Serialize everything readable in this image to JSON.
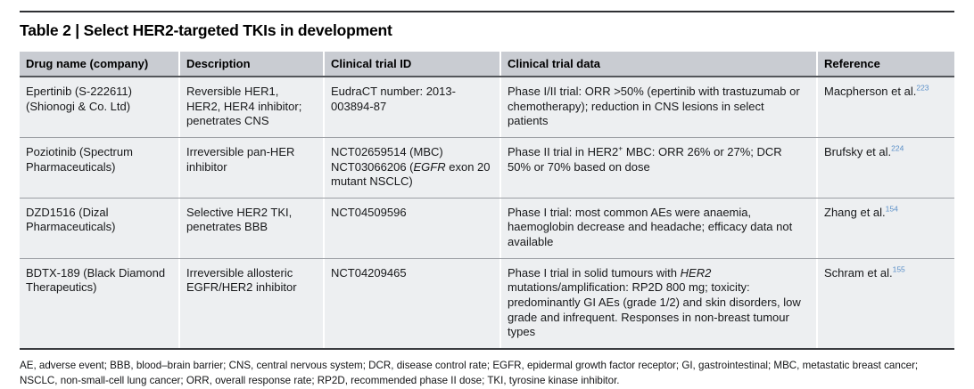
{
  "title": "Table 2 | Select HER2-targeted TKIs in development",
  "colors": {
    "header_bg": "#c9ccd2",
    "row_bg": "#edeff1",
    "reference_link_blue": "#5a8fc8",
    "rule_dark": "#2e3033"
  },
  "table": {
    "columns": [
      {
        "key": "drug",
        "label": "Drug name (company)"
      },
      {
        "key": "description",
        "label": "Description"
      },
      {
        "key": "trial_id",
        "label": "Clinical trial ID"
      },
      {
        "key": "trial_data",
        "label": "Clinical trial data"
      },
      {
        "key": "reference",
        "label": "Reference"
      }
    ],
    "rows": [
      {
        "drug": "Epertinib (S-222611) (Shionogi & Co. Ltd)",
        "description": "Reversible HER1, HER2, HER4 inhibitor; penetrates CNS",
        "trial_id": "EudraCT number: 2013-003894-87",
        "trial_data": "Phase I/II trial: ORR >50% (epertinib with trastuzumab or chemotherapy); reduction in CNS lesions in select patients",
        "reference": [
          {
            "t": "Macpherson et al."
          },
          {
            "t": "223",
            "sup": true,
            "ref": true
          }
        ]
      },
      {
        "drug": "Poziotinib (Spectrum Pharmaceuticals)",
        "description": "Irreversible pan-HER inhibitor",
        "trial_id": [
          {
            "t": "NCT02659514 (MBC)"
          },
          {
            "br": true
          },
          {
            "t": "NCT03066206 ("
          },
          {
            "t": "EGFR",
            "i": true
          },
          {
            "t": " exon 20 mutant NSCLC)"
          }
        ],
        "trial_data": [
          {
            "t": "Phase II trial in HER2"
          },
          {
            "t": "+",
            "sup": true
          },
          {
            "t": " MBC: ORR 26% or 27%; DCR 50% or 70% based on dose"
          }
        ],
        "reference": [
          {
            "t": "Brufsky et al."
          },
          {
            "t": "224",
            "sup": true,
            "ref": true
          }
        ]
      },
      {
        "drug": "DZD1516 (Dizal Pharmaceuticals)",
        "description": "Selective HER2 TKI, penetrates BBB",
        "trial_id": "NCT04509596",
        "trial_data": "Phase I trial: most common AEs were anaemia, haemoglobin decrease and headache; efficacy data not available",
        "reference": [
          {
            "t": "Zhang et al."
          },
          {
            "t": "154",
            "sup": true,
            "ref": true
          }
        ]
      },
      {
        "drug": "BDTX-189 (Black Diamond Therapeutics)",
        "description": "Irreversible allosteric EGFR/HER2 inhibitor",
        "trial_id": "NCT04209465",
        "trial_data": [
          {
            "t": "Phase I trial in solid tumours with "
          },
          {
            "t": "HER2",
            "i": true
          },
          {
            "t": " mutations/amplification: RP2D 800 mg; toxicity: predominantly GI AEs (grade 1/2) and skin disorders, low grade and infrequent. Responses in non-breast tumour types"
          }
        ],
        "reference": [
          {
            "t": "Schram et al."
          },
          {
            "t": "155",
            "sup": true,
            "ref": true
          }
        ]
      }
    ]
  },
  "footnote": "AE, adverse event; BBB, blood–brain barrier; CNS, central nervous system; DCR, disease control rate; EGFR, epidermal growth factor receptor; GI, gastrointestinal; MBC, metastatic breast cancer; NSCLC, non-small-cell lung cancer; ORR, overall response rate; RP2D, recommended phase II dose; TKI, tyrosine kinase inhibitor."
}
